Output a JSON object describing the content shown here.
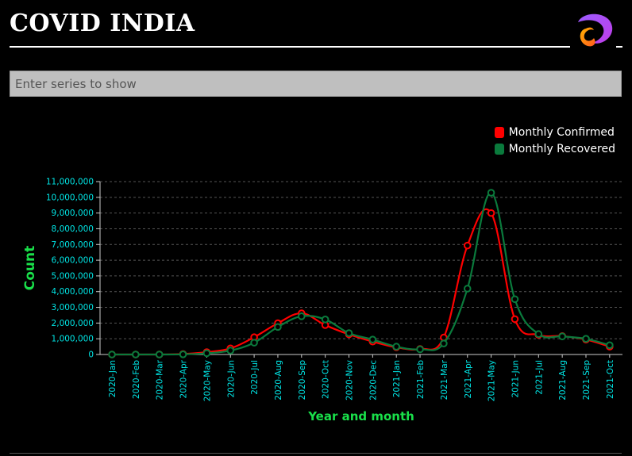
{
  "header": {
    "title": "COVID INDIA",
    "logo": "app-logo-icon"
  },
  "search": {
    "placeholder": "Enter series to show",
    "value": ""
  },
  "colors": {
    "confirmed": "#ff0000",
    "recovered": "#0a7a3c",
    "axis_text": "#00e5e5",
    "axis_title": "#19e04a",
    "grid": "#555555"
  },
  "chart_data": {
    "type": "line",
    "xlabel": "Year and month",
    "ylabel": "Count",
    "ylim": [
      0,
      11000000
    ],
    "y_ticks": [
      "0",
      "1,000,000",
      "2,000,000",
      "3,000,000",
      "4,000,000",
      "5,000,000",
      "6,000,000",
      "7,000,000",
      "8,000,000",
      "9,000,000",
      "10,000,000",
      "11,000,000"
    ],
    "y_tick_values": [
      0,
      1000000,
      2000000,
      3000000,
      4000000,
      5000000,
      6000000,
      7000000,
      8000000,
      9000000,
      10000000,
      11000000
    ],
    "grid": true,
    "legend_position": "top-right",
    "categories": [
      "2020-Jan",
      "2020-Feb",
      "2020-Mar",
      "2020-Apr",
      "2020-May",
      "2020-Jun",
      "2020-Jul",
      "2020-Aug",
      "2020-Sep",
      "2020-Oct",
      "2020-Nov",
      "2020-Dec",
      "2021-Jan",
      "2021-Feb",
      "2021-Mar",
      "2021-Apr",
      "2021-May",
      "2021-Jun",
      "2021-Jul",
      "2021-Aug",
      "2021-Sep",
      "2021-Oct"
    ],
    "series": [
      {
        "name": "Monthly Confirmed",
        "color": "#ff0000",
        "values": [
          0,
          0,
          1000,
          30000,
          150000,
          390000,
          1100000,
          1990000,
          2620000,
          1870000,
          1280000,
          820000,
          460000,
          350000,
          1080000,
          6930000,
          9000000,
          2250000,
          1250000,
          1170000,
          950000,
          500000
        ]
      },
      {
        "name": "Monthly Recovered",
        "color": "#0a7a3c",
        "values": [
          0,
          0,
          0,
          10000,
          80000,
          250000,
          750000,
          1750000,
          2430000,
          2230000,
          1360000,
          950000,
          500000,
          330000,
          700000,
          4190000,
          10290000,
          3520000,
          1300000,
          1150000,
          1000000,
          590000
        ]
      }
    ]
  }
}
